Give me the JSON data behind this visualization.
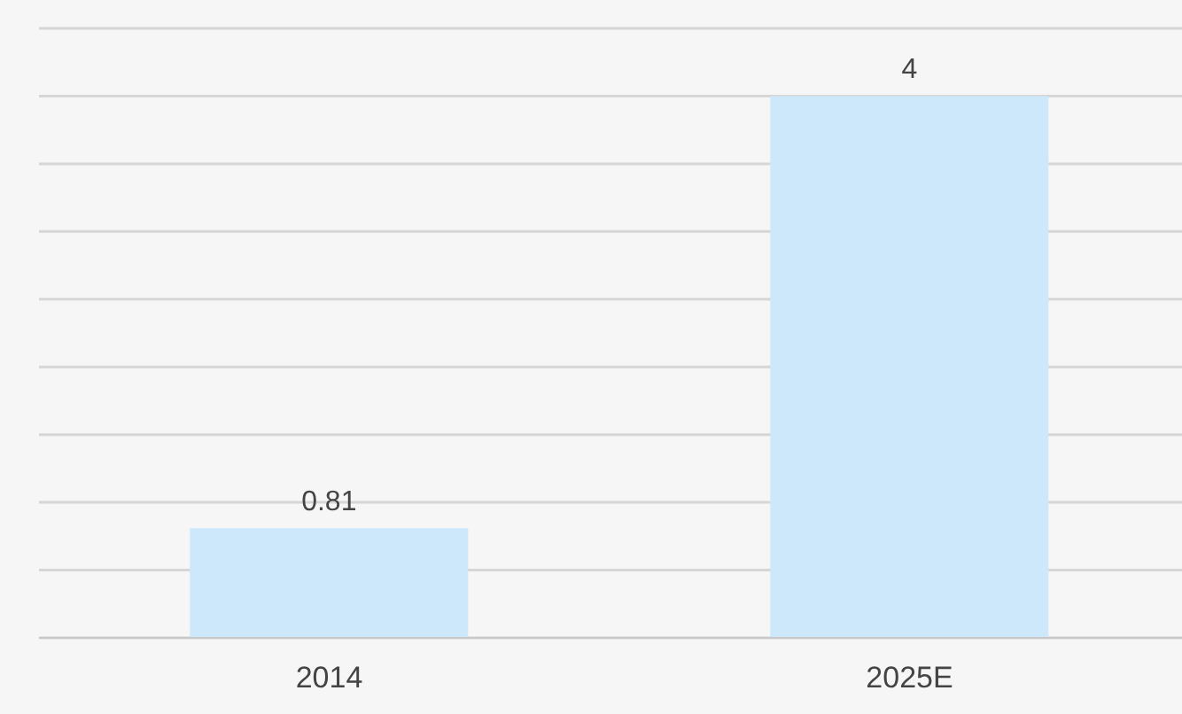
{
  "chart_data": {
    "type": "bar",
    "categories": [
      "2014",
      "2025E"
    ],
    "values": [
      0.81,
      4
    ],
    "color": "#cde8fb",
    "grid": "y",
    "tick_labels": "x",
    "data_labels": true
  }
}
